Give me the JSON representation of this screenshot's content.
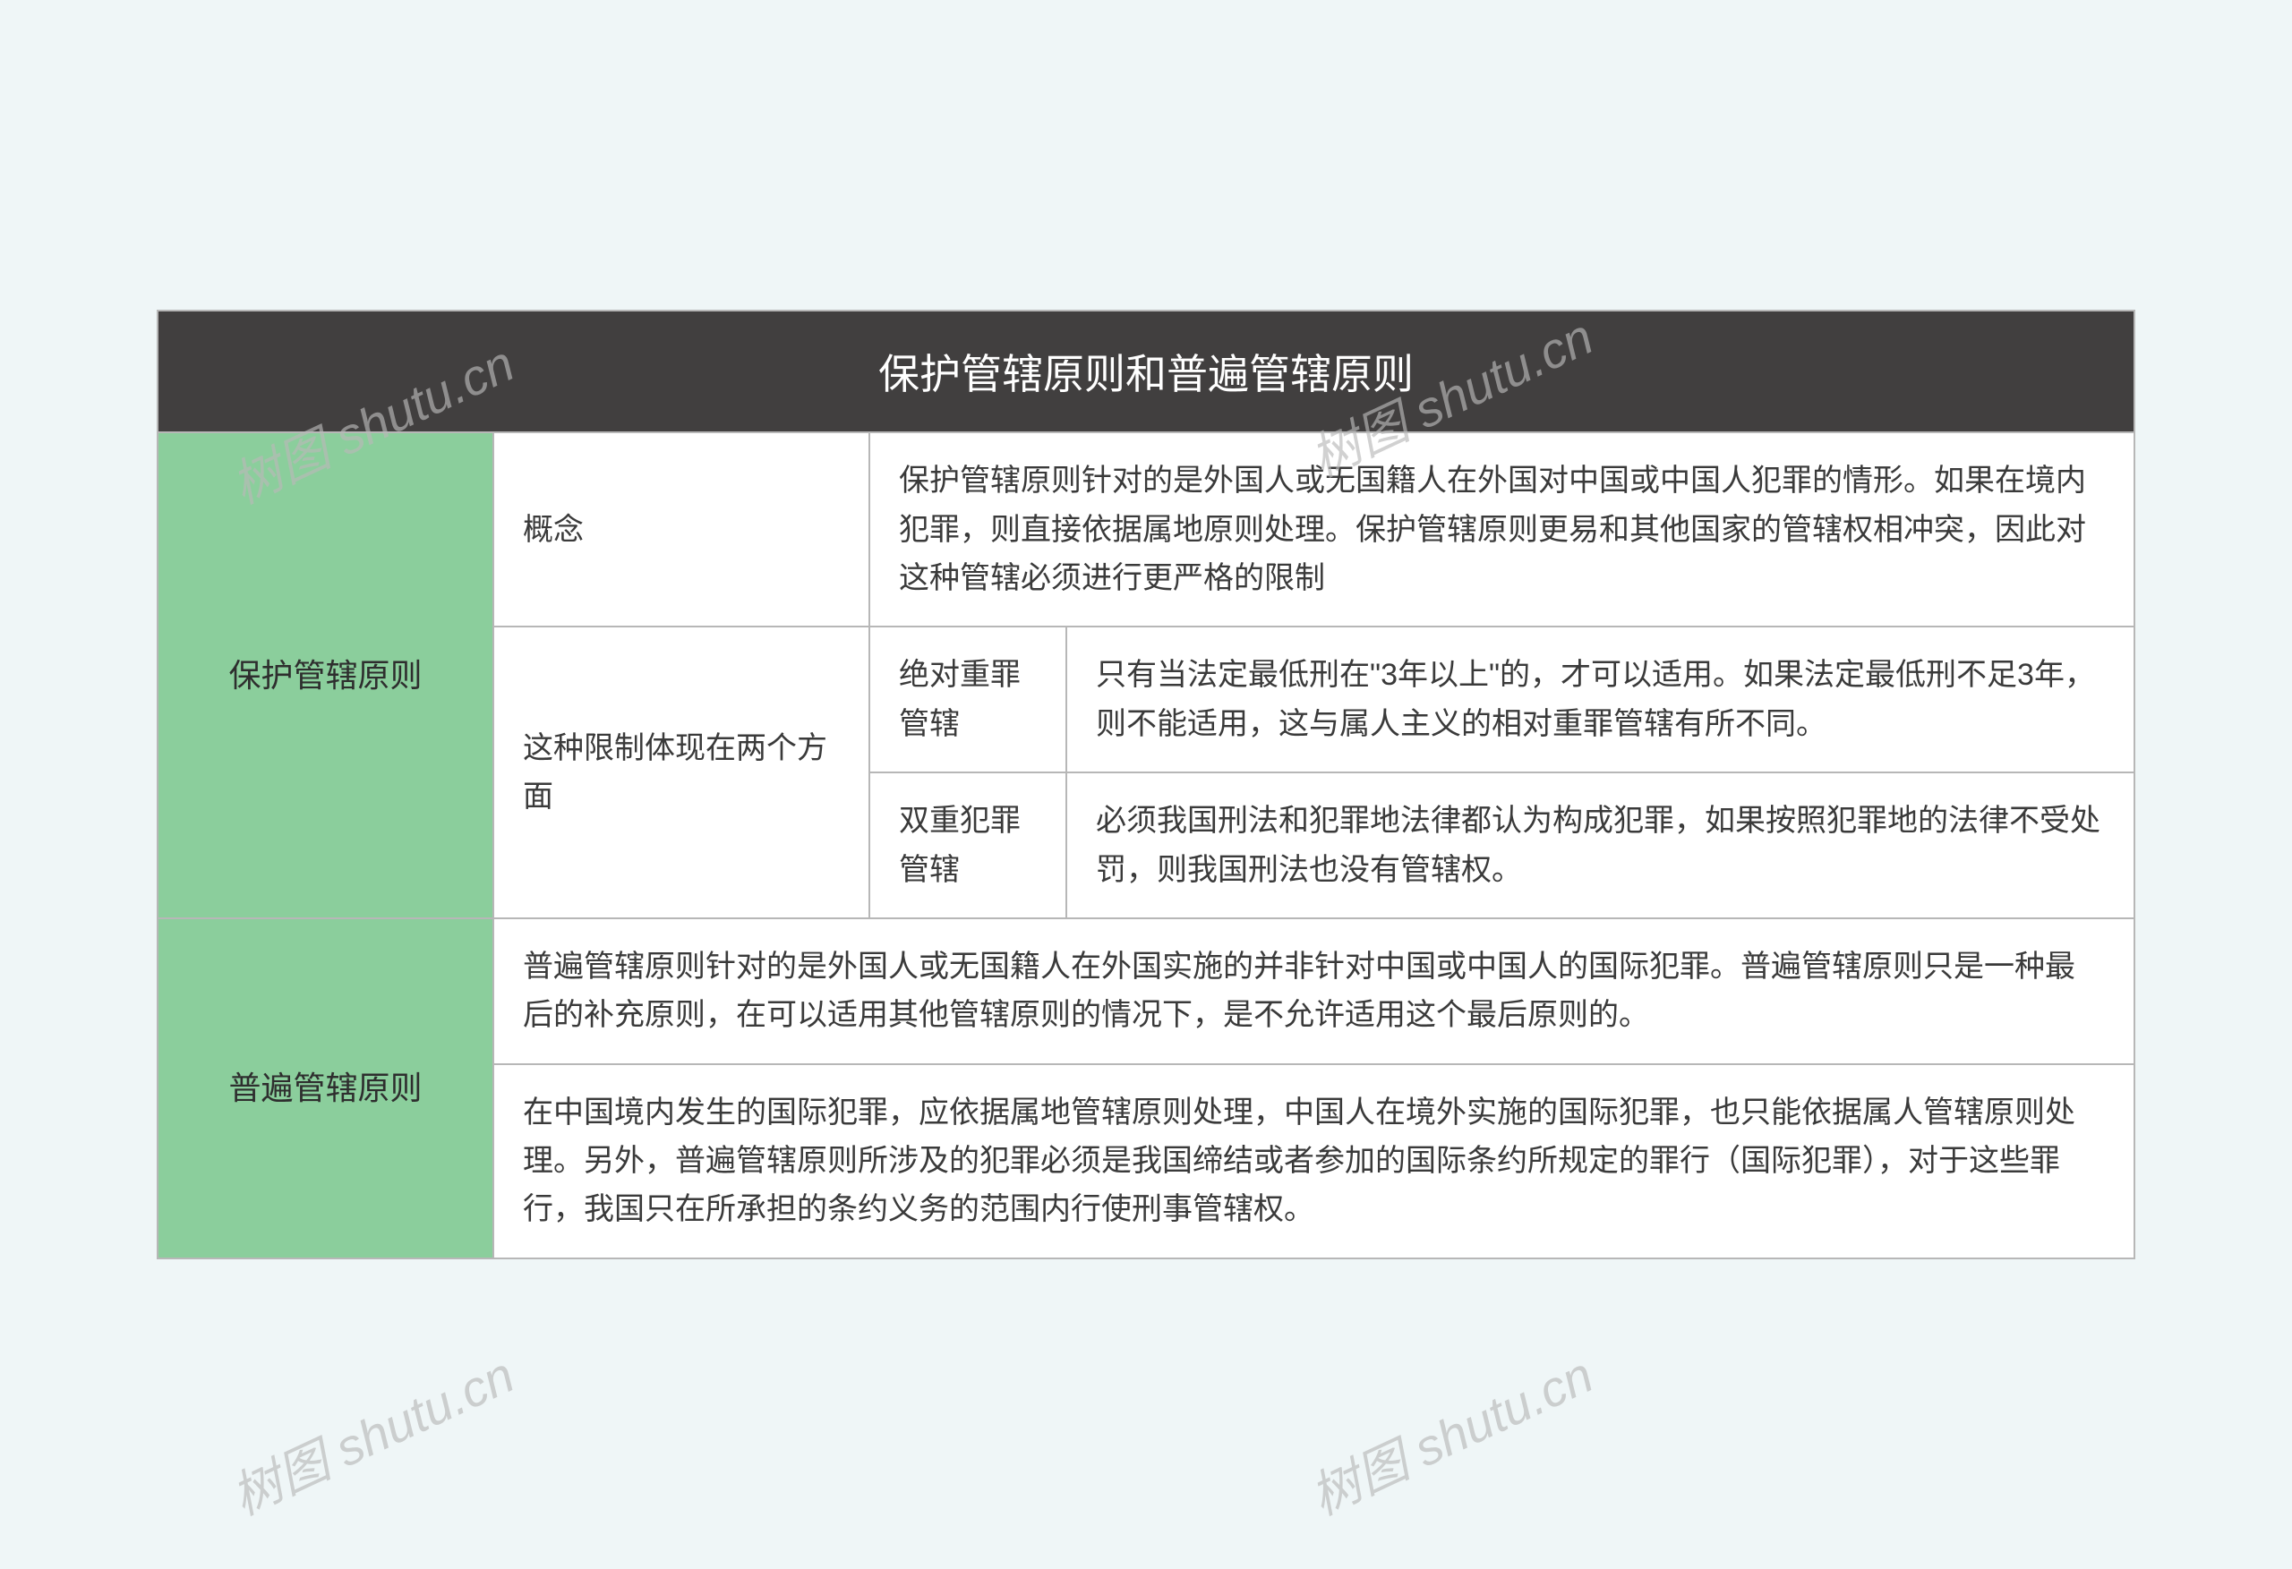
{
  "table": {
    "type": "table",
    "title": "保护管辖原则和普遍管辖原则",
    "header_bg": "#413f3f",
    "header_color": "#ffffff",
    "header_fontsize": 46,
    "green_bg": "#8bce9c",
    "border_color": "#b7b7b7",
    "cell_bg": "#ffffff",
    "page_bg": "#eff6f7",
    "text_color": "#3a3a3a",
    "body_fontsize": 34,
    "section1": {
      "label": "保护管辖原则",
      "row1": {
        "col1": "概念",
        "col2": "保护管辖原则针对的是外国人或无国籍人在外国对中国或中国人犯罪的情形。如果在境内犯罪，则直接依据属地原则处理。保护管辖原则更易和其他国家的管辖权相冲突，因此对这种管辖必须进行更严格的限制"
      },
      "row2": {
        "col1": "这种限制体现在两个方面",
        "sub1": {
          "label": "绝对重罪管辖",
          "content": "只有当法定最低刑在\"3年以上\"的，才可以适用。如果法定最低刑不足3年，则不能适用，这与属人主义的相对重罪管辖有所不同。"
        },
        "sub2": {
          "label": "双重犯罪管辖",
          "content": "必须我国刑法和犯罪地法律都认为构成犯罪，如果按照犯罪地的法律不受处罚，则我国刑法也没有管辖权。"
        }
      }
    },
    "section2": {
      "label": "普遍管辖原则",
      "row1": "普遍管辖原则针对的是外国人或无国籍人在外国实施的并非针对中国或中国人的国际犯罪。普遍管辖原则只是一种最后的补充原则，在可以适用其他管辖原则的情况下，是不允许适用这个最后原则的。",
      "row2": "在中国境内发生的国际犯罪，应依据属地管辖原则处理，中国人在境外实施的国际犯罪，也只能依据属人管辖原则处理。另外，普遍管辖原则所涉及的犯罪必须是我国缔结或者参加的国际条约所规定的罪行（国际犯罪），对于这些罪行，我国只在所承担的条约义务的范围内行使刑事管辖权。"
    }
  },
  "watermark": {
    "text": "树图 shutu.cn",
    "color": "#b9b9b9",
    "fontsize": 56,
    "rotation_deg": -25,
    "opacity": 0.65
  }
}
